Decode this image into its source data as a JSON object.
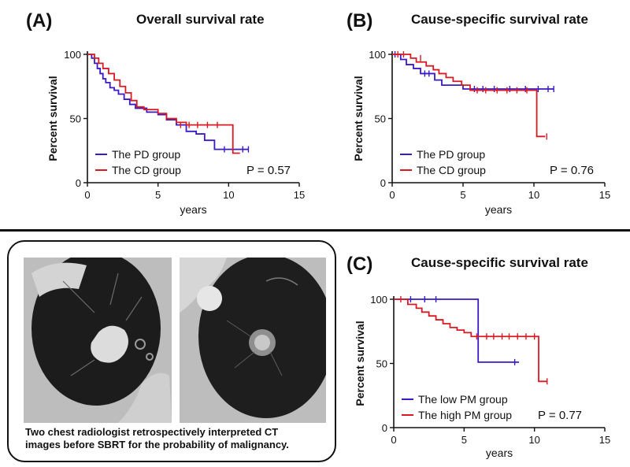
{
  "panels": [
    {
      "label": "(A)",
      "title": "Overall survival rate"
    },
    {
      "label": "(B)",
      "title": "Cause-specific survival rate"
    },
    {
      "label": "(C)",
      "title": "Cause-specific survival rate"
    }
  ],
  "ct_caption": {
    "line1": "Two chest radiologist retrospectively interpreted CT",
    "line2": "images before SBRT for the probability of malignancy."
  },
  "chart_data": [
    {
      "type": "line",
      "step": true,
      "title": "Overall survival rate",
      "xlabel": "years",
      "ylabel": "Percent survival",
      "xlim": [
        0,
        15
      ],
      "ylim": [
        0,
        100
      ],
      "xticks": [
        0,
        5,
        10,
        15
      ],
      "yticks": [
        0,
        50,
        100
      ],
      "annotation": "P = 0.57",
      "legend_position": "bottom-left",
      "series": [
        {
          "name": "The PD group",
          "color": "#3b19c8",
          "x": [
            0,
            0.3,
            0.5,
            0.7,
            0.9,
            1.1,
            1.3,
            1.6,
            1.9,
            2.2,
            2.6,
            3.0,
            3.4,
            3.8,
            4.2,
            4.6,
            5.0,
            5.6,
            6.3,
            7.0,
            7.7,
            8.3,
            9.0,
            10.2,
            11.4
          ],
          "y": [
            100,
            97,
            93,
            89,
            85,
            81,
            78,
            74,
            72,
            69,
            65,
            61,
            58,
            58,
            55,
            55,
            53,
            49,
            45,
            40,
            38,
            33,
            26,
            26,
            26
          ],
          "censored": [
            [
              9.7,
              26
            ],
            [
              11.0,
              26
            ],
            [
              11.4,
              26
            ]
          ]
        },
        {
          "name": "The CD group",
          "color": "#d81b23",
          "x": [
            0,
            0.5,
            0.8,
            1.1,
            1.5,
            1.9,
            2.3,
            2.7,
            3.1,
            3.5,
            4.0,
            4.5,
            5.0,
            5.6,
            6.3,
            7.0,
            10.3,
            10.8
          ],
          "y": [
            100,
            97,
            93,
            89,
            85,
            80,
            75,
            70,
            64,
            59,
            57,
            57,
            54,
            50,
            47,
            45,
            23,
            23
          ],
          "censored": [
            [
              6.6,
              45
            ],
            [
              7.2,
              45
            ],
            [
              7.8,
              45
            ],
            [
              8.5,
              45
            ],
            [
              9.2,
              45
            ]
          ]
        }
      ]
    },
    {
      "type": "line",
      "step": true,
      "title": "Cause-specific survival rate",
      "xlabel": "years",
      "ylabel": "Percent survival",
      "xlim": [
        0,
        15
      ],
      "ylim": [
        0,
        100
      ],
      "xticks": [
        0,
        5,
        10,
        15
      ],
      "yticks": [
        0,
        50,
        100
      ],
      "annotation": "P = 0.76",
      "legend_position": "bottom-left",
      "series": [
        {
          "name": "The PD group",
          "color": "#3b19c8",
          "x": [
            0,
            0.6,
            1.0,
            1.5,
            2.0,
            3.0,
            3.5,
            4.5,
            5.0,
            5.5,
            11.4
          ],
          "y": [
            100,
            96,
            92,
            89,
            85,
            80,
            76,
            76,
            73,
            73,
            73
          ],
          "censored": [
            [
              0.2,
              100
            ],
            [
              2.3,
              85
            ],
            [
              2.6,
              85
            ],
            [
              5.8,
              73
            ],
            [
              6.4,
              73
            ],
            [
              7.2,
              73
            ],
            [
              8.3,
              73
            ],
            [
              9.4,
              73
            ],
            [
              10.3,
              73
            ],
            [
              11.0,
              73
            ],
            [
              11.4,
              73
            ]
          ]
        },
        {
          "name": "The CD group",
          "color": "#d81b23",
          "x": [
            0,
            1.3,
            1.7,
            2.4,
            2.9,
            3.3,
            3.8,
            4.3,
            4.9,
            5.5,
            10.2,
            10.8
          ],
          "y": [
            100,
            97,
            94,
            91,
            88,
            85,
            82,
            79,
            76,
            72,
            36,
            36
          ],
          "censored": [
            [
              0.4,
              100
            ],
            [
              0.8,
              100
            ],
            [
              2.0,
              97
            ],
            [
              6.0,
              72
            ],
            [
              6.6,
              72
            ],
            [
              7.4,
              72
            ],
            [
              8.1,
              72
            ],
            [
              8.8,
              72
            ],
            [
              9.5,
              72
            ],
            [
              10.9,
              36
            ]
          ]
        }
      ]
    },
    {
      "type": "line",
      "step": true,
      "title": "Cause-specific survival rate",
      "xlabel": "years",
      "ylabel": "Percent survival",
      "xlim": [
        0,
        15
      ],
      "ylim": [
        0,
        100
      ],
      "xticks": [
        0,
        5,
        10,
        15
      ],
      "yticks": [
        0,
        50,
        100
      ],
      "annotation": "P = 0.77",
      "legend_position": "bottom-left",
      "series": [
        {
          "name": "The low PM group",
          "color": "#3b19c8",
          "x": [
            0,
            6.0,
            8.9
          ],
          "y": [
            100,
            51,
            51
          ],
          "censored": [
            [
              1.2,
              100
            ],
            [
              2.2,
              100
            ],
            [
              3.0,
              100
            ],
            [
              8.6,
              51
            ]
          ]
        },
        {
          "name": "The high PM group",
          "color": "#d81b23",
          "x": [
            0,
            1.0,
            1.6,
            2.0,
            2.5,
            3.0,
            3.5,
            4.0,
            4.5,
            5.0,
            5.5,
            10.3,
            10.9
          ],
          "y": [
            100,
            96,
            93,
            90,
            87,
            84,
            81,
            78,
            76,
            74,
            71,
            36,
            36
          ],
          "censored": [
            [
              0.5,
              100
            ],
            [
              5.9,
              71
            ],
            [
              6.6,
              71
            ],
            [
              7.1,
              71
            ],
            [
              7.7,
              71
            ],
            [
              8.2,
              71
            ],
            [
              8.8,
              71
            ],
            [
              9.4,
              71
            ],
            [
              10.0,
              71
            ],
            [
              10.9,
              36
            ]
          ]
        }
      ]
    }
  ]
}
